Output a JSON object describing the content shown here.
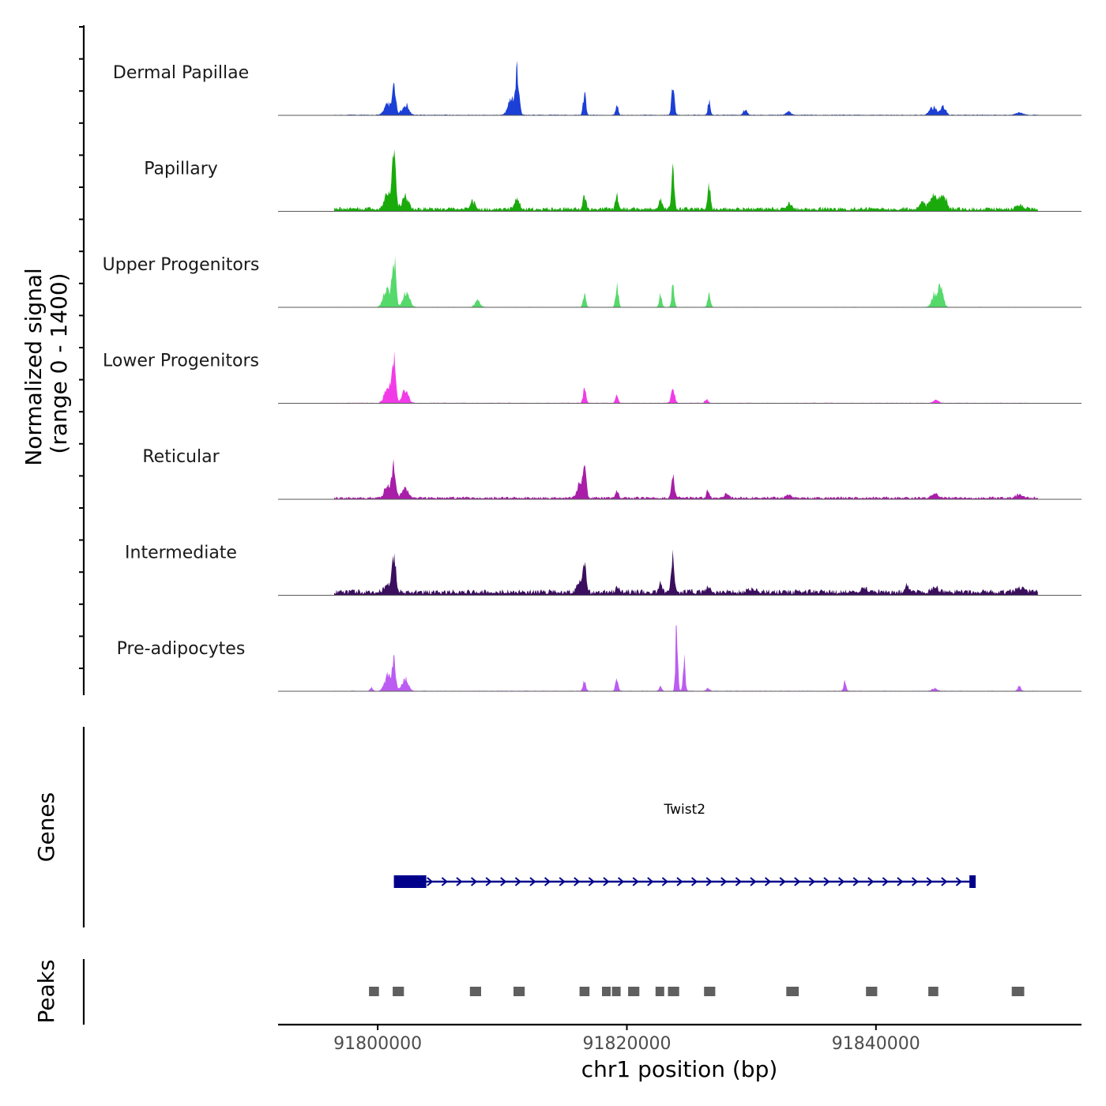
{
  "chart_data": {
    "type": "area",
    "title": "",
    "xlabel": "chr1 position (bp)",
    "ylabel": "Normalized signal\n(range 0 - 1400)",
    "ylabel_lines": [
      "Normalized signal",
      "(range 0 - 1400)"
    ],
    "ylim": [
      0,
      1400
    ],
    "xlim": [
      91792000,
      91856500
    ],
    "x_ticks": [
      91800000,
      91820000,
      91840000
    ],
    "x_tick_labels": [
      "91800000",
      "91820000",
      "91840000"
    ],
    "signal_range": [
      91796500,
      91853000
    ],
    "series": [
      {
        "name": "Dermal Papillae",
        "color": "#1c3fd6",
        "baseline": 8,
        "peaks": [
          [
            91801300,
            600,
            140
          ],
          [
            91800800,
            220,
            250
          ],
          [
            91802200,
            220,
            250
          ],
          [
            91811200,
            820,
            150
          ],
          [
            91810700,
            320,
            250
          ],
          [
            91816600,
            430,
            110
          ],
          [
            91819200,
            200,
            100
          ],
          [
            91823700,
            600,
            110
          ],
          [
            91826600,
            260,
            100
          ],
          [
            91829500,
            90,
            160
          ],
          [
            91833000,
            60,
            200
          ],
          [
            91844600,
            150,
            280
          ],
          [
            91845400,
            160,
            200
          ],
          [
            91851500,
            45,
            300
          ]
        ]
      },
      {
        "name": "Papillary",
        "color": "#1aaa0c",
        "baseline": 40,
        "peaks": [
          [
            91801300,
            1000,
            140
          ],
          [
            91800800,
            300,
            250
          ],
          [
            91802200,
            250,
            250
          ],
          [
            91807600,
            150,
            200
          ],
          [
            91811200,
            180,
            200
          ],
          [
            91816600,
            250,
            120
          ],
          [
            91819200,
            280,
            110
          ],
          [
            91822700,
            180,
            120
          ],
          [
            91823700,
            700,
            110
          ],
          [
            91826600,
            450,
            110
          ],
          [
            91833000,
            100,
            200
          ],
          [
            91843700,
            130,
            200
          ],
          [
            91844600,
            300,
            300
          ],
          [
            91845400,
            280,
            250
          ],
          [
            91851500,
            70,
            300
          ]
        ]
      },
      {
        "name": "Upper Progenitors",
        "color": "#55d96b",
        "baseline": 5,
        "peaks": [
          [
            91801300,
            1000,
            150
          ],
          [
            91800700,
            350,
            250
          ],
          [
            91802300,
            300,
            250
          ],
          [
            91808000,
            120,
            200
          ],
          [
            91816600,
            250,
            110
          ],
          [
            91819200,
            450,
            110
          ],
          [
            91822700,
            230,
            110
          ],
          [
            91823700,
            420,
            110
          ],
          [
            91826600,
            260,
            110
          ],
          [
            91844700,
            250,
            220
          ],
          [
            91845200,
            400,
            200
          ]
        ]
      },
      {
        "name": "Lower Progenitors",
        "color": "#f23be8",
        "baseline": 6,
        "peaks": [
          [
            91801300,
            800,
            150
          ],
          [
            91800800,
            350,
            250
          ],
          [
            91802200,
            250,
            250
          ],
          [
            91816600,
            300,
            110
          ],
          [
            91819200,
            160,
            110
          ],
          [
            91823700,
            300,
            140
          ],
          [
            91826400,
            80,
            120
          ],
          [
            91844800,
            60,
            200
          ]
        ]
      },
      {
        "name": "Reticular",
        "color": "#a81ea8",
        "baseline": 25,
        "peaks": [
          [
            91801300,
            650,
            150
          ],
          [
            91800800,
            250,
            250
          ],
          [
            91802200,
            200,
            250
          ],
          [
            91816600,
            600,
            140
          ],
          [
            91816200,
            280,
            200
          ],
          [
            91819200,
            160,
            110
          ],
          [
            91823700,
            450,
            120
          ],
          [
            91826500,
            150,
            120
          ],
          [
            91828000,
            80,
            160
          ],
          [
            91833000,
            60,
            200
          ],
          [
            91844700,
            90,
            250
          ],
          [
            91851500,
            70,
            300
          ]
        ]
      },
      {
        "name": "Intermediate",
        "color": "#3b0f5e",
        "baseline": 55,
        "peaks": [
          [
            91801300,
            800,
            150
          ],
          [
            91800800,
            120,
            250
          ],
          [
            91816600,
            550,
            140
          ],
          [
            91816200,
            250,
            200
          ],
          [
            91819200,
            130,
            110
          ],
          [
            91822700,
            180,
            110
          ],
          [
            91823700,
            750,
            120
          ],
          [
            91826500,
            140,
            120
          ],
          [
            91830000,
            60,
            300
          ],
          [
            91839000,
            60,
            300
          ],
          [
            91842500,
            140,
            110
          ],
          [
            91844700,
            100,
            250
          ],
          [
            91851500,
            80,
            300
          ]
        ]
      },
      {
        "name": "Pre-adipocytes",
        "color": "#bb5cf2",
        "baseline": 6,
        "peaks": [
          [
            91801300,
            550,
            150
          ],
          [
            91800800,
            300,
            250
          ],
          [
            91802200,
            250,
            250
          ],
          [
            91799500,
            80,
            100
          ],
          [
            91816600,
            200,
            110
          ],
          [
            91819200,
            260,
            110
          ],
          [
            91822700,
            80,
            110
          ],
          [
            91824000,
            1400,
            90
          ],
          [
            91824600,
            650,
            90
          ],
          [
            91826500,
            60,
            120
          ],
          [
            91837500,
            180,
            100
          ],
          [
            91844700,
            50,
            200
          ],
          [
            91851500,
            100,
            120
          ]
        ]
      }
    ]
  },
  "genes_track": {
    "title": "Genes",
    "genes": [
      {
        "name": "Twist2",
        "color": "#00008b",
        "start": 91801300,
        "end": 91848000,
        "strand": "+",
        "exons": [
          [
            91801300,
            91803900
          ],
          [
            91847500,
            91848000
          ]
        ]
      }
    ]
  },
  "peaks_track": {
    "title": "Peaks",
    "color": "#5f5f5f",
    "peaks": [
      [
        91799300,
        91800100
      ],
      [
        91801200,
        91802100
      ],
      [
        91807400,
        91808300
      ],
      [
        91810900,
        91811800
      ],
      [
        91816200,
        91817000
      ],
      [
        91818000,
        91818700
      ],
      [
        91818800,
        91819500
      ],
      [
        91820100,
        91821000
      ],
      [
        91822300,
        91823000
      ],
      [
        91823300,
        91824200
      ],
      [
        91826200,
        91827100
      ],
      [
        91832800,
        91833800
      ],
      [
        91839200,
        91840100
      ],
      [
        91844200,
        91845000
      ],
      [
        91850900,
        91851900
      ]
    ]
  }
}
